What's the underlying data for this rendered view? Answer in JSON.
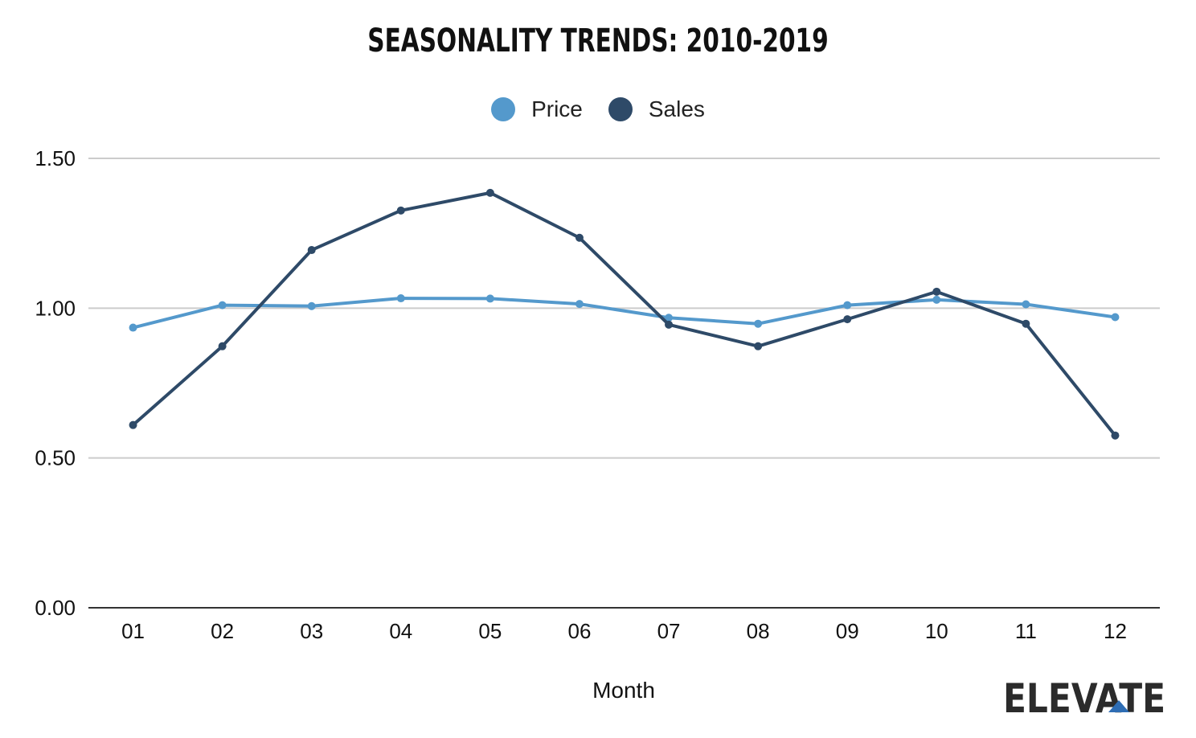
{
  "chart_data": {
    "type": "line",
    "title": "SEASONALITY TRENDS: 2010-2019",
    "xlabel": "Month",
    "ylabel": "",
    "categories": [
      "01",
      "02",
      "03",
      "04",
      "05",
      "06",
      "07",
      "08",
      "09",
      "10",
      "11",
      "12"
    ],
    "ylim": [
      0,
      1.5
    ],
    "yticks": [
      "0.00",
      "0.50",
      "1.00",
      "1.50"
    ],
    "yticks_values": [
      0,
      0.5,
      1.0,
      1.5
    ],
    "grid": true,
    "legend_placement": "top-center",
    "series": [
      {
        "name": "Price",
        "color": "#5499CC",
        "values": [
          0.935,
          1.01,
          1.007,
          1.033,
          1.032,
          1.014,
          0.968,
          0.948,
          1.01,
          1.028,
          1.013,
          0.97
        ]
      },
      {
        "name": "Sales",
        "color": "#2E4A68",
        "values": [
          0.61,
          0.873,
          1.194,
          1.326,
          1.385,
          1.235,
          0.945,
          0.873,
          0.963,
          1.055,
          0.948,
          0.575
        ]
      }
    ]
  },
  "logo": {
    "text": "ELEVATE",
    "color": "#2b2b2b",
    "accent_color": "#2E6DB4"
  }
}
